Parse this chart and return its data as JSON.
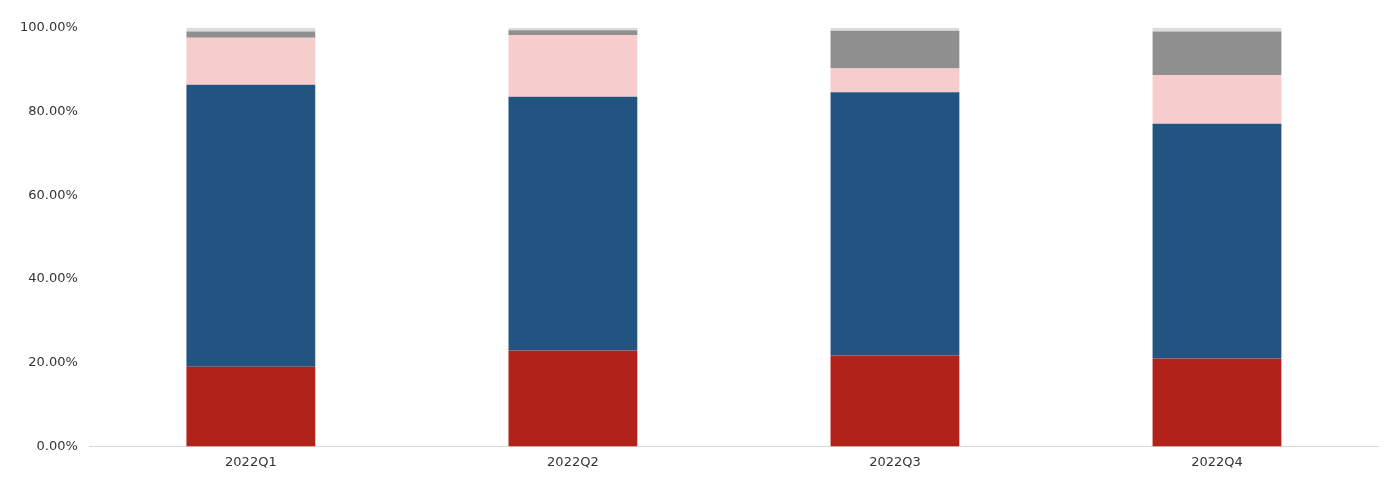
{
  "chart_data": {
    "type": "bar",
    "stacked": true,
    "categories": [
      "2022Q1",
      "2022Q2",
      "2022Q3",
      "2022Q4"
    ],
    "series": [
      {
        "color": "#b0221a",
        "values": [
          19.0,
          22.9,
          21.7,
          21.0
        ]
      },
      {
        "color": "#225482",
        "values": [
          67.4,
          60.6,
          62.9,
          56.1
        ]
      },
      {
        "color": "#f6cccc",
        "values": [
          11.2,
          14.8,
          5.7,
          11.6
        ]
      },
      {
        "color": "#8f8f8f",
        "values": [
          1.5,
          1.1,
          9.0,
          10.4
        ]
      },
      {
        "color": "#dcdcdc",
        "values": [
          0.9,
          0.6,
          0.7,
          0.9
        ]
      }
    ],
    "ylim": [
      0,
      100
    ],
    "yticks": [
      {
        "value": 0,
        "label": "0.00%"
      },
      {
        "value": 20,
        "label": "20.00%"
      },
      {
        "value": 40,
        "label": "40.00%"
      },
      {
        "value": 60,
        "label": "60.00%"
      },
      {
        "value": 80,
        "label": "80.00%"
      },
      {
        "value": 100,
        "label": "100.00%"
      }
    ],
    "grid": false,
    "legend": false
  }
}
